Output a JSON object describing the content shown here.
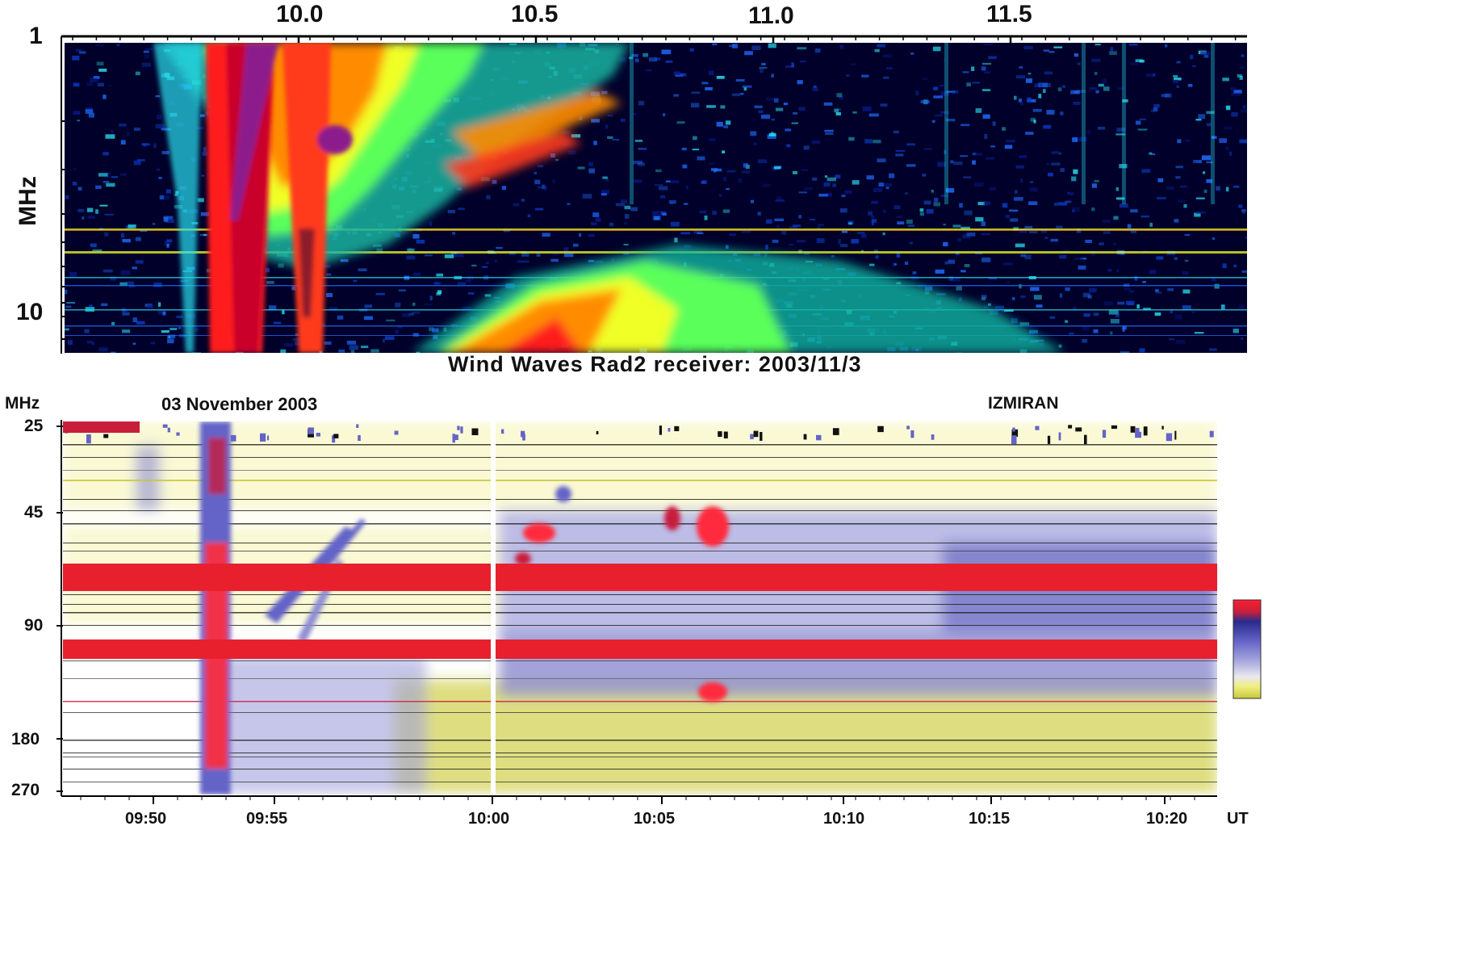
{
  "chart_data": [
    {
      "type": "heatmap",
      "title": "Wind Waves Rad2 receiver: 2003/11/3",
      "ylabel": "MHz",
      "x_ticks": [
        "10.0",
        "10.5",
        "11.0",
        "11.5"
      ],
      "x_range": [
        9.5,
        11.95
      ],
      "y_ticks": [
        "1",
        "10"
      ],
      "y_scale": "log",
      "y_range": [
        1,
        14
      ],
      "colormap": [
        "#00002a",
        "#0a1a8c",
        "#1e6cff",
        "#28e0f0",
        "#5aff5a",
        "#f0ff28",
        "#ff8c00",
        "#ff1e1e",
        "#c8002a",
        "#8c1e8c"
      ]
    },
    {
      "type": "heatmap",
      "title": "03 November 2003",
      "source": "IZMIRAN",
      "ylabel": "MHz",
      "xlabel": "UT",
      "x_ticks": [
        "09:50",
        "09:55",
        "10:00",
        "10:05",
        "10:10",
        "10:15",
        "10:20"
      ],
      "y_ticks": [
        "25",
        "45",
        "90",
        "180",
        "270"
      ],
      "y_scale": "log",
      "colormap": [
        "#ffffff",
        "#f0ee80",
        "#c8c83c",
        "#a0a0dc",
        "#6464c8",
        "#2a2a8c",
        "#c81e3c",
        "#ff2a3c"
      ]
    }
  ]
}
